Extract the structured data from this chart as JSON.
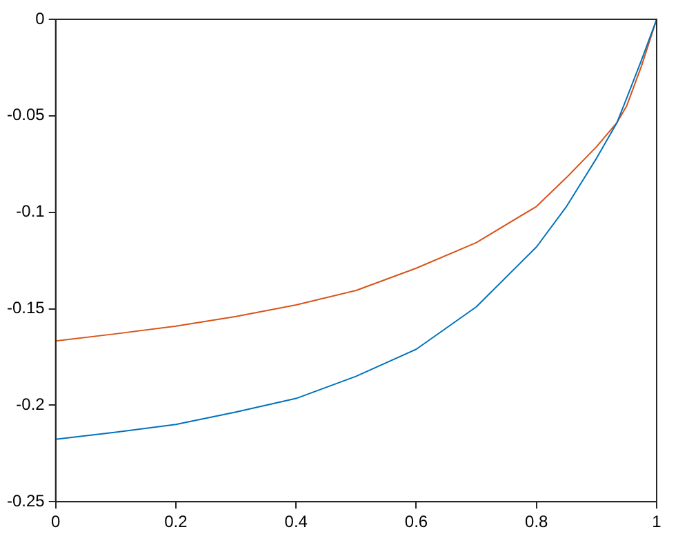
{
  "chart_data": {
    "type": "line",
    "xlim": [
      0,
      1
    ],
    "ylim": [
      -0.25,
      0
    ],
    "xticks": [
      0,
      0.2,
      0.4,
      0.6,
      0.8,
      1
    ],
    "yticks": [
      -0.25,
      -0.2,
      -0.15,
      -0.1,
      -0.05,
      0
    ],
    "marker": "none",
    "line_style": "solid",
    "series": [
      {
        "color": "#0072bd",
        "x": [
          0,
          0.1,
          0.2,
          0.3,
          0.4,
          0.5,
          0.6,
          0.7,
          0.8,
          0.85,
          0.9,
          0.934,
          0.95,
          0.975,
          1
        ],
        "values": [
          -0.2177,
          -0.214,
          -0.21,
          -0.2035,
          -0.1965,
          -0.185,
          -0.171,
          -0.149,
          -0.118,
          -0.097,
          -0.072,
          -0.0535,
          -0.041,
          -0.021,
          0
        ]
      },
      {
        "color": "#d95319",
        "x": [
          0,
          0.1,
          0.2,
          0.3,
          0.4,
          0.5,
          0.6,
          0.7,
          0.8,
          0.85,
          0.9,
          0.934,
          0.95,
          0.975,
          1
        ],
        "values": [
          -0.1667,
          -0.163,
          -0.159,
          -0.154,
          -0.148,
          -0.1405,
          -0.129,
          -0.1157,
          -0.097,
          -0.082,
          -0.066,
          -0.0535,
          -0.045,
          -0.024,
          0
        ]
      }
    ]
  }
}
